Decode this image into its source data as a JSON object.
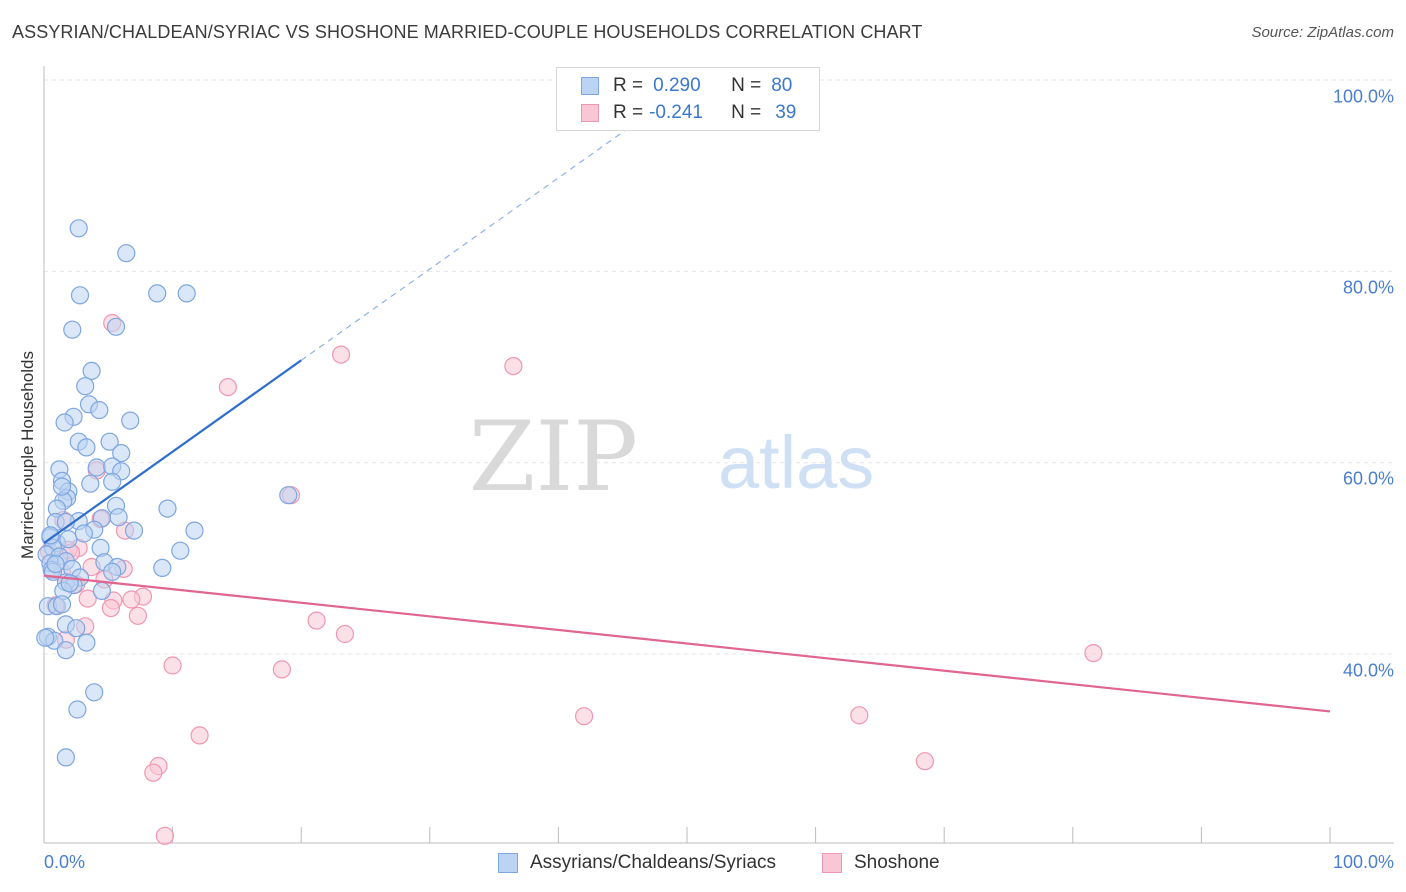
{
  "title": "ASSYRIAN/CHALDEAN/SYRIAC VS SHOSHONE MARRIED-COUPLE HOUSEHOLDS CORRELATION CHART",
  "source": "Source: ZipAtlas.com",
  "watermark": {
    "zip": "ZIP",
    "atlas": "atlas"
  },
  "stats": {
    "blue": {
      "r_label": "R =",
      "r_value": "0.290",
      "n_label": "N =",
      "n_value": "80"
    },
    "pink": {
      "r_label": "R =",
      "r_value": "-0.241",
      "n_label": "N =",
      "n_value": "39"
    }
  },
  "legend": {
    "blue": "Assyrians/Chaldeans/Syriacs",
    "pink": "Shoshone"
  },
  "colors": {
    "blue_fill": "#bcd3f3",
    "blue_stroke": "#7ea6e0",
    "blue_line": "#2f6fcc",
    "pink_fill": "#f9c6d6",
    "pink_stroke": "#ef97b2",
    "pink_line": "#e0658f",
    "tick_text": "#4a7fd0"
  },
  "chart_data": {
    "type": "scatter",
    "title": "ASSYRIAN/CHALDEAN/SYRIAC VS SHOSHONE MARRIED-COUPLE HOUSEHOLDS CORRELATION CHART",
    "xlabel": "",
    "ylabel": "Married-couple Households",
    "xlim": [
      0,
      100
    ],
    "ylim": [
      20,
      100
    ],
    "x_tick_labels": [
      "0.0%",
      "100.0%"
    ],
    "y_ticks": [
      40,
      60,
      80,
      100
    ],
    "y_tick_labels": [
      "40.0%",
      "60.0%",
      "80.0%",
      "100.0%"
    ],
    "grid": true,
    "series": [
      {
        "name": "Assyrians/Chaldeans/Syriacs",
        "color": "blue",
        "r": 0.29,
        "n": 80,
        "trend": {
          "x0": 0,
          "y0": 51.6,
          "x1": 20,
          "y1": 70.7,
          "dashed_to_x": 46,
          "dashed_to_y": 95.5
        },
        "points": [
          [
            2.7,
            84.5
          ],
          [
            6.4,
            81.9
          ],
          [
            2.8,
            77.5
          ],
          [
            8.8,
            77.7
          ],
          [
            11.1,
            77.7
          ],
          [
            2.2,
            73.9
          ],
          [
            5.6,
            74.2
          ],
          [
            3.7,
            69.6
          ],
          [
            3.2,
            68.0
          ],
          [
            3.5,
            66.1
          ],
          [
            4.3,
            65.5
          ],
          [
            2.3,
            64.8
          ],
          [
            1.6,
            64.2
          ],
          [
            6.7,
            64.4
          ],
          [
            2.7,
            62.2
          ],
          [
            5.1,
            62.2
          ],
          [
            3.3,
            61.6
          ],
          [
            6.0,
            61.0
          ],
          [
            1.2,
            59.3
          ],
          [
            4.1,
            59.5
          ],
          [
            5.3,
            59.6
          ],
          [
            6.0,
            59.1
          ],
          [
            3.6,
            57.8
          ],
          [
            5.3,
            58.0
          ],
          [
            1.4,
            58.1
          ],
          [
            1.9,
            57.0
          ],
          [
            1.8,
            56.3
          ],
          [
            1.5,
            56.0
          ],
          [
            19.0,
            56.6
          ],
          [
            9.6,
            55.2
          ],
          [
            1.0,
            55.2
          ],
          [
            5.6,
            55.5
          ],
          [
            4.5,
            54.2
          ],
          [
            5.8,
            54.3
          ],
          [
            2.7,
            53.9
          ],
          [
            0.9,
            53.8
          ],
          [
            1.7,
            53.8
          ],
          [
            3.9,
            53.0
          ],
          [
            7.0,
            52.9
          ],
          [
            11.7,
            52.9
          ],
          [
            0.5,
            52.2
          ],
          [
            1.0,
            51.6
          ],
          [
            1.9,
            52.0
          ],
          [
            0.7,
            51.1
          ],
          [
            0.2,
            50.4
          ],
          [
            1.2,
            50.2
          ],
          [
            4.4,
            51.1
          ],
          [
            10.6,
            50.8
          ],
          [
            0.5,
            49.5
          ],
          [
            1.7,
            49.7
          ],
          [
            4.7,
            49.6
          ],
          [
            5.7,
            49.1
          ],
          [
            0.6,
            48.8
          ],
          [
            2.2,
            48.9
          ],
          [
            9.2,
            49.0
          ],
          [
            0.7,
            48.6
          ],
          [
            5.3,
            48.6
          ],
          [
            2.8,
            48.0
          ],
          [
            1.7,
            47.5
          ],
          [
            2.3,
            47.2
          ],
          [
            1.5,
            46.6
          ],
          [
            4.5,
            46.6
          ],
          [
            0.3,
            45.0
          ],
          [
            1.0,
            45.0
          ],
          [
            1.4,
            45.2
          ],
          [
            1.7,
            43.1
          ],
          [
            2.5,
            42.7
          ],
          [
            0.3,
            41.8
          ],
          [
            0.8,
            41.4
          ],
          [
            3.3,
            41.2
          ],
          [
            1.7,
            40.4
          ],
          [
            3.9,
            36.0
          ],
          [
            2.6,
            34.2
          ],
          [
            1.7,
            29.2
          ],
          [
            0.1,
            41.7
          ],
          [
            0.5,
            52.4
          ],
          [
            1.4,
            57.5
          ],
          [
            3.1,
            52.6
          ],
          [
            0.9,
            49.4
          ],
          [
            2.0,
            47.4
          ]
        ]
      },
      {
        "name": "Shoshone",
        "color": "pink",
        "r": -0.241,
        "n": 39,
        "trend": {
          "x0": 0,
          "y0": 48.2,
          "x1": 100,
          "y1": 34.0
        },
        "points": [
          [
            5.3,
            74.6
          ],
          [
            23.1,
            71.3
          ],
          [
            36.5,
            70.1
          ],
          [
            14.3,
            67.9
          ],
          [
            19.2,
            56.6
          ],
          [
            4.1,
            59.2
          ],
          [
            1.5,
            54.0
          ],
          [
            4.4,
            54.1
          ],
          [
            6.3,
            52.9
          ],
          [
            2.7,
            51.1
          ],
          [
            1.9,
            50.9
          ],
          [
            0.4,
            50.7
          ],
          [
            2.1,
            50.6
          ],
          [
            3.7,
            49.1
          ],
          [
            6.2,
            48.9
          ],
          [
            1.4,
            48.5
          ],
          [
            4.7,
            47.8
          ],
          [
            2.5,
            47.3
          ],
          [
            7.7,
            46.0
          ],
          [
            3.4,
            45.8
          ],
          [
            6.8,
            45.7
          ],
          [
            5.4,
            45.6
          ],
          [
            0.9,
            45.1
          ],
          [
            5.2,
            44.8
          ],
          [
            7.3,
            44.0
          ],
          [
            21.2,
            43.5
          ],
          [
            23.4,
            42.1
          ],
          [
            3.2,
            42.9
          ],
          [
            81.6,
            40.1
          ],
          [
            10.0,
            38.8
          ],
          [
            18.5,
            38.4
          ],
          [
            42.0,
            33.5
          ],
          [
            63.4,
            33.6
          ],
          [
            12.1,
            31.5
          ],
          [
            68.5,
            28.8
          ],
          [
            8.9,
            28.3
          ],
          [
            8.5,
            27.6
          ],
          [
            9.4,
            21.0
          ],
          [
            1.7,
            41.5
          ]
        ]
      }
    ]
  }
}
